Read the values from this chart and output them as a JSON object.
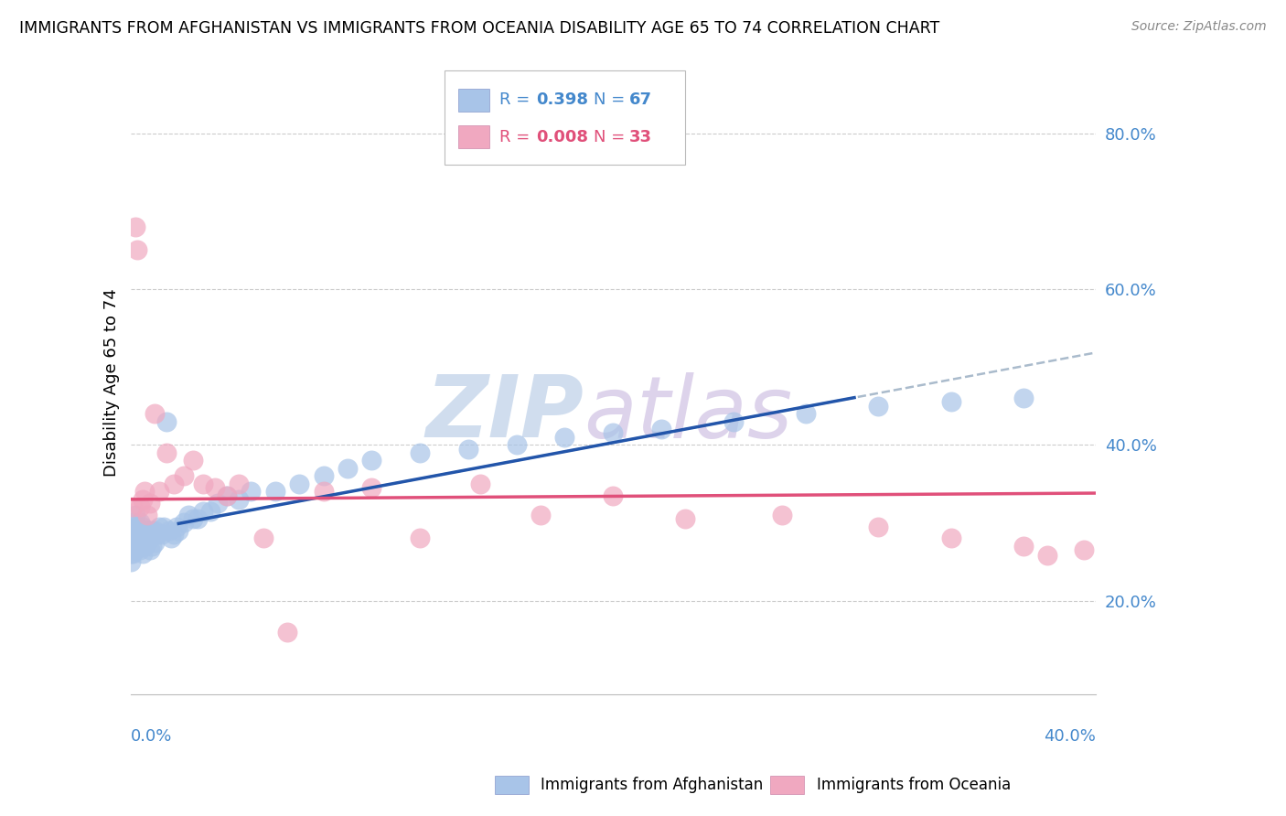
{
  "title": "IMMIGRANTS FROM AFGHANISTAN VS IMMIGRANTS FROM OCEANIA DISABILITY AGE 65 TO 74 CORRELATION CHART",
  "source": "Source: ZipAtlas.com",
  "ylabel": "Disability Age 65 to 74",
  "afghanistan_color": "#a8c4e8",
  "oceania_color": "#f0a8c0",
  "afghanistan_line_color": "#2255aa",
  "oceania_line_color": "#e0507a",
  "trend_dash_color": "#aabbcc",
  "watermark_zip": "ZIP",
  "watermark_atlas": "atlas",
  "watermark_color_zip": "#c8d8ec",
  "watermark_color_atlas": "#d8cce8",
  "xlim": [
    0.0,
    0.4
  ],
  "ylim": [
    0.08,
    0.88
  ],
  "yticks": [
    0.2,
    0.4,
    0.6,
    0.8
  ],
  "ytick_labels": [
    "20.0%",
    "40.0%",
    "60.0%",
    "80.0%"
  ],
  "tick_color": "#4488cc",
  "legend1_r": "R = 0.398",
  "legend1_n": "N = 67",
  "legend2_r": "R = 0.008",
  "legend2_n": "N = 33",
  "afghanistan_x": [
    0.0,
    0.0,
    0.0,
    0.001,
    0.001,
    0.001,
    0.001,
    0.001,
    0.002,
    0.002,
    0.002,
    0.002,
    0.003,
    0.003,
    0.003,
    0.004,
    0.004,
    0.004,
    0.005,
    0.005,
    0.005,
    0.006,
    0.006,
    0.007,
    0.007,
    0.008,
    0.008,
    0.009,
    0.009,
    0.01,
    0.01,
    0.011,
    0.012,
    0.013,
    0.014,
    0.015,
    0.016,
    0.017,
    0.018,
    0.019,
    0.02,
    0.022,
    0.024,
    0.026,
    0.028,
    0.03,
    0.033,
    0.036,
    0.04,
    0.045,
    0.05,
    0.06,
    0.07,
    0.08,
    0.09,
    0.1,
    0.12,
    0.14,
    0.16,
    0.18,
    0.2,
    0.22,
    0.25,
    0.28,
    0.31,
    0.34,
    0.37
  ],
  "afghanistan_y": [
    0.26,
    0.25,
    0.28,
    0.27,
    0.26,
    0.29,
    0.3,
    0.28,
    0.265,
    0.275,
    0.29,
    0.31,
    0.27,
    0.28,
    0.295,
    0.265,
    0.285,
    0.3,
    0.26,
    0.28,
    0.295,
    0.27,
    0.285,
    0.275,
    0.29,
    0.265,
    0.28,
    0.27,
    0.29,
    0.275,
    0.29,
    0.285,
    0.295,
    0.285,
    0.295,
    0.43,
    0.29,
    0.28,
    0.285,
    0.295,
    0.29,
    0.3,
    0.31,
    0.305,
    0.305,
    0.315,
    0.315,
    0.325,
    0.335,
    0.33,
    0.34,
    0.34,
    0.35,
    0.36,
    0.37,
    0.38,
    0.39,
    0.395,
    0.4,
    0.41,
    0.415,
    0.42,
    0.43,
    0.44,
    0.45,
    0.455,
    0.46
  ],
  "oceania_x": [
    0.001,
    0.002,
    0.003,
    0.004,
    0.005,
    0.006,
    0.007,
    0.008,
    0.01,
    0.012,
    0.015,
    0.018,
    0.022,
    0.026,
    0.03,
    0.035,
    0.04,
    0.045,
    0.055,
    0.065,
    0.08,
    0.1,
    0.12,
    0.145,
    0.17,
    0.2,
    0.23,
    0.27,
    0.31,
    0.34,
    0.37,
    0.38,
    0.395
  ],
  "oceania_y": [
    0.32,
    0.68,
    0.65,
    0.32,
    0.33,
    0.34,
    0.31,
    0.325,
    0.44,
    0.34,
    0.39,
    0.35,
    0.36,
    0.38,
    0.35,
    0.345,
    0.335,
    0.35,
    0.28,
    0.16,
    0.34,
    0.345,
    0.28,
    0.35,
    0.31,
    0.335,
    0.305,
    0.31,
    0.295,
    0.28,
    0.27,
    0.258,
    0.265
  ]
}
